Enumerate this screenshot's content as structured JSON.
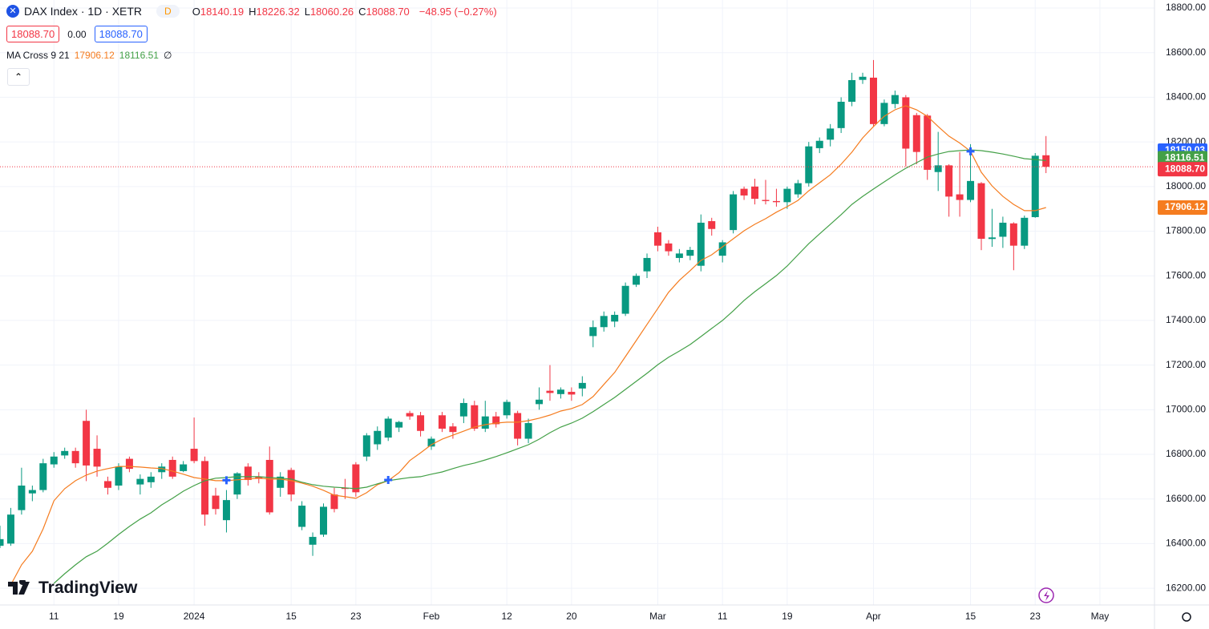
{
  "chart_data": {
    "type": "candlestick",
    "symbol": "DAX Index · 1D · XETR",
    "badge": "D",
    "ohlc_legend": [
      {
        "key": "O",
        "value": "18140.19"
      },
      {
        "key": "H",
        "value": "18226.32"
      },
      {
        "key": "L",
        "value": "18060.26"
      },
      {
        "key": "C",
        "value": "18088.70"
      }
    ],
    "change": "−48.95 (−0.27%)",
    "order_boxes": [
      "18088.70",
      "0.00",
      "18088.70"
    ],
    "indicator": {
      "name": "MA Cross 9 21",
      "values": [
        "17906.12",
        "18116.51"
      ],
      "extra": "∅"
    },
    "brand": "TradingView",
    "up_color": "#089981",
    "down_color": "#f23645",
    "open": [
      16390,
      16400,
      16550,
      16625,
      16640,
      16755,
      16795,
      16815,
      16950,
      16825,
      16680,
      16660,
      16780,
      16665,
      16675,
      16720,
      16775,
      16725,
      16825,
      16770,
      16615,
      16505,
      16620,
      16745,
      16700,
      16775,
      16650,
      16730,
      16475,
      16395,
      16440,
      16620,
      16650,
      16755,
      16790,
      16845,
      16875,
      16920,
      16985,
      16975,
      16835,
      16975,
      16925,
      16970,
      17020,
      16915,
      16970,
      16975,
      16985,
      16870,
      17025,
      17085,
      17070,
      17080,
      17095,
      17330,
      17370,
      17395,
      17430,
      17560,
      17620,
      17795,
      17745,
      17680,
      17690,
      17645,
      17845,
      17690,
      17805,
      17990,
      18000,
      17940,
      17935,
      17930,
      17965,
      18015,
      18172,
      18210,
      18262,
      18380,
      18478,
      18488,
      18280,
      18370,
      18400,
      18320,
      18318,
      18065,
      18095,
      17965,
      17940,
      18015,
      17765,
      17775,
      17835,
      17735,
      17863,
      18140.19
    ],
    "high": [
      16480,
      16560,
      16740,
      16660,
      16780,
      16810,
      16830,
      16830,
      17000,
      16885,
      16700,
      16760,
      16790,
      16710,
      16720,
      16760,
      16790,
      16770,
      16965,
      16790,
      16650,
      16640,
      16720,
      16760,
      16720,
      16835,
      16720,
      16740,
      16590,
      16450,
      16580,
      16650,
      16690,
      16765,
      16895,
      16925,
      16970,
      16950,
      16995,
      16990,
      16880,
      16990,
      16940,
      17050,
      17040,
      17040,
      16990,
      17045,
      16995,
      16960,
      17100,
      17200,
      17100,
      17100,
      17150,
      17400,
      17440,
      17440,
      17570,
      17610,
      17700,
      17820,
      17760,
      17720,
      17730,
      17875,
      17860,
      17760,
      17980,
      18000,
      18035,
      18030,
      17990,
      18000,
      18030,
      18200,
      18220,
      18280,
      18400,
      18510,
      18510,
      18567,
      18390,
      18430,
      18410,
      18330,
      18325,
      18245,
      18100,
      18155,
      18190,
      18020,
      17900,
      17865,
      17840,
      17870,
      18150,
      18226.32
    ],
    "low": [
      16380,
      16390,
      16530,
      16590,
      16630,
      16740,
      16780,
      16740,
      16680,
      16700,
      16620,
      16640,
      16720,
      16620,
      16650,
      16690,
      16690,
      16720,
      16760,
      16480,
      16530,
      16450,
      16600,
      16660,
      16670,
      16530,
      16610,
      16590,
      16460,
      16345,
      16430,
      16540,
      16600,
      16610,
      16770,
      16820,
      16860,
      16900,
      16955,
      16880,
      16820,
      16900,
      16870,
      16940,
      16905,
      16900,
      16920,
      16960,
      16840,
      16850,
      17000,
      17040,
      17050,
      17040,
      17060,
      17280,
      17350,
      17370,
      17420,
      17550,
      17590,
      17710,
      17690,
      17660,
      17670,
      17620,
      17780,
      17660,
      17790,
      17940,
      17920,
      17920,
      17910,
      17900,
      17950,
      18000,
      18150,
      18180,
      18240,
      18360,
      18460,
      18270,
      18270,
      18350,
      18090,
      18100,
      18030,
      17980,
      17865,
      17865,
      17930,
      17715,
      17730,
      17725,
      17625,
      17720,
      17860,
      18060.26
    ],
    "close": [
      16420,
      16530,
      16660,
      16640,
      16760,
      16790,
      16815,
      16760,
      16750,
      16745,
      16650,
      16745,
      16735,
      16690,
      16700,
      16745,
      16700,
      16755,
      16770,
      16530,
      16555,
      16595,
      16715,
      16685,
      16690,
      16540,
      16700,
      16620,
      16570,
      16430,
      16565,
      16555,
      16645,
      16630,
      16885,
      16905,
      16960,
      16945,
      16970,
      16905,
      16870,
      16915,
      16900,
      17030,
      16915,
      16970,
      16935,
      17035,
      16870,
      16940,
      17045,
      17075,
      17090,
      17068,
      17120,
      17370,
      17420,
      17425,
      17555,
      17600,
      17680,
      17735,
      17710,
      17700,
      17716,
      17838,
      17810,
      17750,
      17965,
      17960,
      17945,
      17935,
      17930,
      17990,
      18015,
      18180,
      18205,
      18260,
      18380,
      18477,
      18492,
      18280,
      18375,
      18410,
      18170,
      18155,
      18075,
      18095,
      17955,
      17940,
      18025,
      17766,
      17772,
      17838,
      17735,
      17860,
      18138,
      18088.7
    ],
    "series": [
      {
        "color": "#f57c1f",
        "values": [
          null,
          16215,
          16305,
          16366,
          16466,
          16592,
          16646,
          16682,
          16707,
          16725,
          16736,
          16746,
          16746,
          16743,
          16739,
          16736,
          16725,
          16711,
          16696,
          16689,
          16682,
          16682,
          16686,
          16689,
          16693,
          16689,
          16689,
          16682,
          16671,
          16657,
          16639,
          16617,
          16610,
          16603,
          16628,
          16664,
          16682,
          16718,
          16772,
          16807,
          16843,
          16868,
          16886,
          16904,
          16922,
          16933,
          16940,
          16944,
          16944,
          16951,
          16962,
          16976,
          16994,
          17005,
          17023,
          17059,
          17113,
          17167,
          17238,
          17310,
          17382,
          17454,
          17526,
          17580,
          17623,
          17669,
          17694,
          17730,
          17766,
          17802,
          17831,
          17856,
          17885,
          17910,
          17938,
          17981,
          18017,
          18053,
          18100,
          18154,
          18218,
          18269,
          18315,
          18344,
          18362,
          18344,
          18315,
          18269,
          18226,
          18195,
          18158,
          18064,
          18003,
          17956,
          17920,
          17892,
          17892,
          17906.12
        ]
      },
      {
        "color": "#43a047",
        "values": [
          null,
          null,
          null,
          null,
          null,
          16222,
          16265,
          16305,
          16341,
          16366,
          16402,
          16441,
          16477,
          16510,
          16538,
          16574,
          16603,
          16635,
          16660,
          16682,
          16693,
          16696,
          16700,
          16700,
          16700,
          16696,
          16693,
          16689,
          16675,
          16664,
          16657,
          16653,
          16650,
          16646,
          16653,
          16668,
          16682,
          16689,
          16696,
          16700,
          16711,
          16721,
          16736,
          16750,
          16761,
          16775,
          16790,
          16807,
          16825,
          16843,
          16868,
          16897,
          16922,
          16940,
          16962,
          16991,
          17023,
          17055,
          17091,
          17127,
          17163,
          17202,
          17235,
          17263,
          17292,
          17328,
          17364,
          17400,
          17443,
          17490,
          17529,
          17565,
          17601,
          17644,
          17694,
          17744,
          17788,
          17831,
          17874,
          17920,
          17956,
          17989,
          18021,
          18053,
          18082,
          18107,
          18132,
          18146,
          18157,
          18161,
          18164,
          18161,
          18154,
          18146,
          18136,
          18125,
          18121,
          18116.51
        ]
      }
    ],
    "crosses": {
      "color": "#2962ff",
      "x": [
        21,
        36,
        90
      ],
      "values": [
        16684,
        16685,
        18158
      ]
    },
    "price_tags": [
      {
        "value": 18150.03,
        "label": "18150.03",
        "color": "#2962ff"
      },
      {
        "value": 18116.51,
        "label": "18116.51",
        "color": "#43a047"
      },
      {
        "value": 18088.7,
        "label": "18088.70",
        "color": "#f23645"
      },
      {
        "value": 17906.12,
        "label": "17906.12",
        "color": "#f57c1f"
      }
    ],
    "xlim": [
      0,
      107.06
    ],
    "ylim": [
      16125,
      18836
    ],
    "yticks": [
      {
        "value": 16200,
        "label": "16200.00"
      },
      {
        "value": 16400,
        "label": "16400.00"
      },
      {
        "value": 16600,
        "label": "16600.00"
      },
      {
        "value": 16800,
        "label": "16800.00"
      },
      {
        "value": 17000,
        "label": "17000.00"
      },
      {
        "value": 17200,
        "label": "17200.00"
      },
      {
        "value": 17400,
        "label": "17400.00"
      },
      {
        "value": 17600,
        "label": "17600.00"
      },
      {
        "value": 17800,
        "label": "17800.00"
      },
      {
        "value": 18000,
        "label": "18000.00"
      },
      {
        "value": 18200,
        "label": "18200.00"
      },
      {
        "value": 18400,
        "label": "18400.00"
      },
      {
        "value": 18600,
        "label": "18600.00"
      },
      {
        "value": 18800,
        "label": "18800.00"
      }
    ],
    "xticks": [
      {
        "value": 5,
        "label": "11"
      },
      {
        "value": 11,
        "label": "19"
      },
      {
        "value": 18,
        "label": "2024"
      },
      {
        "value": 27,
        "label": "15"
      },
      {
        "value": 33,
        "label": "23"
      },
      {
        "value": 40,
        "label": "Feb"
      },
      {
        "value": 47,
        "label": "12"
      },
      {
        "value": 53,
        "label": "20"
      },
      {
        "value": 61,
        "label": "Mar"
      },
      {
        "value": 67,
        "label": "11"
      },
      {
        "value": 73,
        "label": "19"
      },
      {
        "value": 81,
        "label": "Apr"
      },
      {
        "value": 90,
        "label": "15"
      },
      {
        "value": 96,
        "label": "23"
      },
      {
        "value": 102,
        "label": "May"
      }
    ],
    "grid": true
  }
}
